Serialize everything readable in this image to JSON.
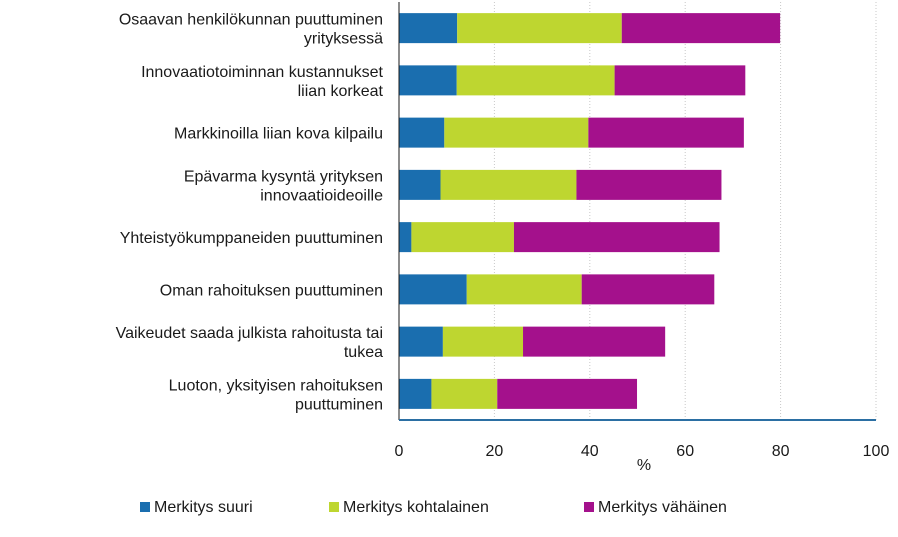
{
  "chart_data": {
    "type": "bar",
    "orientation": "horizontal",
    "stacked": true,
    "categories": [
      [
        "Osaavan henkilökunnan puuttuminen",
        "yrityksessä"
      ],
      [
        "Innovaatiotoiminnan kustannukset",
        "liian korkeat"
      ],
      [
        "Markkinoilla liian kova kilpailu"
      ],
      [
        "Epävarma kysyntä yrityksen",
        "innovaatioideoille"
      ],
      [
        "Yhteistyökumppaneiden puuttuminen"
      ],
      [
        "Oman rahoituksen puuttuminen"
      ],
      [
        "Vaikeudet saada julkista rahoitusta tai",
        "tukea"
      ],
      [
        "Luoton, yksityisen rahoituksen",
        "puuttuminen"
      ]
    ],
    "series": [
      {
        "name": "Merkitys suuri",
        "color": "#1a6eaf",
        "values": [
          12.2,
          12.1,
          9.5,
          8.7,
          2.6,
          14.2,
          9.2,
          6.8
        ]
      },
      {
        "name": "Merkitys kohtalainen",
        "color": "#bed630",
        "values": [
          34.5,
          33.1,
          30.2,
          28.5,
          21.5,
          24.1,
          16.8,
          13.8
        ]
      },
      {
        "name": "Merkitys vähäinen",
        "color": "#a4118c",
        "values": [
          33.2,
          27.4,
          32.6,
          30.4,
          43.1,
          27.8,
          29.8,
          29.3
        ]
      }
    ],
    "xlim": [
      0,
      100
    ],
    "xticks": [
      0,
      20,
      40,
      60,
      80,
      100
    ],
    "xlabel": "%",
    "grid": "vertical",
    "legend_position": "bottom"
  }
}
